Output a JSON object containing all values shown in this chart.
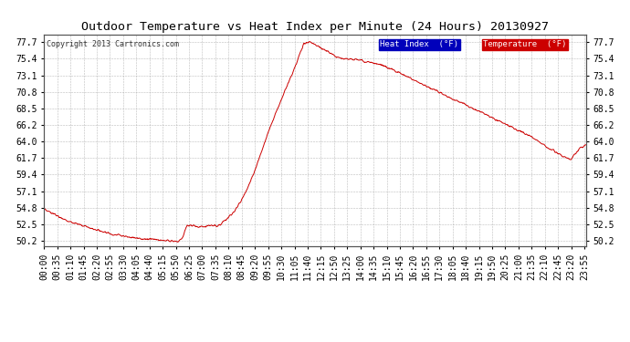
{
  "title": "Outdoor Temperature vs Heat Index per Minute (24 Hours) 20130927",
  "copyright_text": "Copyright 2013 Cartronics.com",
  "legend_label_heat": "Heat Index  (°F)",
  "legend_label_temp": "Temperature  (°F)",
  "legend_color_heat": "#0000bb",
  "legend_color_temp": "#cc0000",
  "line_color": "#cc0000",
  "background_color": "#ffffff",
  "grid_color": "#aaaaaa",
  "yticks": [
    50.2,
    52.5,
    54.8,
    57.1,
    59.4,
    61.7,
    64.0,
    66.2,
    68.5,
    70.8,
    73.1,
    75.4,
    77.7
  ],
  "ylim": [
    49.5,
    78.8
  ],
  "title_fontsize": 9.5,
  "tick_fontsize": 7,
  "copyright_fontsize": 6,
  "tick_step_minutes": 35,
  "key_minutes": [
    0,
    20,
    40,
    60,
    90,
    120,
    150,
    180,
    210,
    240,
    270,
    300,
    330,
    350,
    355,
    360,
    365,
    370,
    375,
    380,
    390,
    400,
    415,
    430,
    445,
    460,
    480,
    500,
    520,
    540,
    560,
    580,
    600,
    620,
    640,
    660,
    675,
    690,
    700,
    710,
    720,
    730,
    740,
    750,
    760,
    770,
    780,
    800,
    820,
    840,
    860,
    880,
    900,
    920,
    940,
    960,
    980,
    1000,
    1020,
    1040,
    1060,
    1080,
    1100,
    1120,
    1140,
    1160,
    1180,
    1200,
    1220,
    1240,
    1260,
    1280,
    1300,
    1320,
    1340,
    1360,
    1380,
    1400,
    1420,
    1439
  ],
  "key_temps": [
    54.5,
    54.1,
    53.6,
    53.1,
    52.5,
    52.0,
    51.6,
    51.2,
    50.9,
    50.7,
    50.5,
    50.4,
    50.3,
    50.2,
    50.2,
    50.3,
    50.5,
    51.0,
    51.8,
    52.5,
    52.4,
    52.3,
    52.1,
    52.3,
    52.4,
    52.3,
    53.0,
    54.0,
    55.5,
    57.5,
    60.0,
    63.0,
    66.0,
    68.5,
    71.0,
    73.5,
    75.5,
    77.5,
    77.7,
    77.6,
    77.4,
    77.1,
    76.8,
    76.5,
    76.2,
    75.9,
    75.6,
    75.4,
    75.3,
    75.2,
    75.0,
    74.8,
    74.5,
    74.0,
    73.5,
    73.0,
    72.5,
    72.0,
    71.5,
    71.0,
    70.5,
    70.0,
    69.5,
    69.0,
    68.5,
    68.0,
    67.5,
    67.0,
    66.5,
    66.0,
    65.5,
    65.0,
    64.5,
    63.8,
    63.0,
    62.5,
    61.8,
    61.5,
    63.0,
    63.5
  ]
}
